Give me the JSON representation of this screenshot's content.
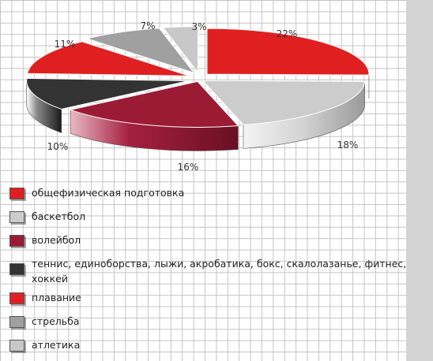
{
  "chart_data": {
    "type": "pie",
    "style": "3d-exploded",
    "categories": [
      "общефизическая подготовка",
      "баскетбол",
      "волейбол",
      "теннис, единоборства, лыжи, акробатика, бокс, скалолазанье, фитнес, хоккей",
      "плавание",
      "стрельба",
      "атлетика"
    ],
    "values": [
      22,
      18,
      16,
      10,
      11,
      7,
      3
    ],
    "labels": [
      "22%",
      "18%",
      "16%",
      "10%",
      "11%",
      "7%",
      "3%"
    ],
    "colors": [
      "#e02020",
      "#cccccc",
      "#9b1b35",
      "#333333",
      "#e02020",
      "#a0a0a0",
      "#c8c8c8"
    ],
    "legend": "bottom-left",
    "grid": true
  }
}
